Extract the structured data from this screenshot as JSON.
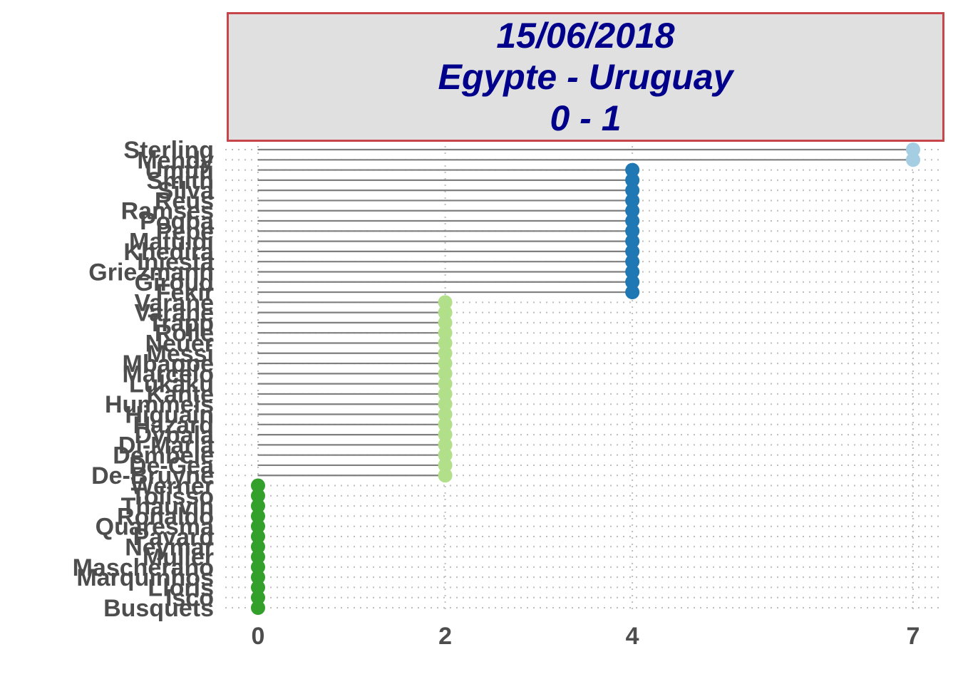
{
  "title": {
    "date": "15/06/2018",
    "match": "Egypte - Uruguay",
    "score": "0 - 1"
  },
  "colors": {
    "title_bg": "#e0e0e0",
    "title_border": "#c8464b",
    "title_text": "#00008b",
    "segment": "#7f7f7f",
    "level_7": "#a6cee3",
    "level_4": "#1f78b4",
    "level_2": "#b2df8a",
    "level_0": "#33a02c"
  },
  "chart_data": {
    "type": "lollipop",
    "orientation": "horizontal",
    "xlim": [
      0,
      7
    ],
    "x_ticks": [
      0,
      2,
      4,
      7
    ],
    "grid": "dotted",
    "categories": [
      "Sterling",
      "Mendy",
      "Umtiti",
      "Smith",
      "Silva",
      "Reus",
      "Ramses",
      "Pogba",
      "Pepe",
      "Matuidi",
      "Khedira",
      "Iniesta",
      "Griezmann",
      "Giroud",
      "Fekir",
      "Varane",
      "Varane",
      "Trapp",
      "Rolle",
      "Neuer",
      "Messi",
      "Mbappe",
      "Marcelo",
      "Lukaku",
      "Kante",
      "Hummels",
      "Higuain",
      "Hazard",
      "Dybala",
      "Di-Maria",
      "Dembele",
      "De-Gea",
      "De-Bruyne",
      "Werner",
      "Tolisso",
      "Thauvin",
      "Ronaldo",
      "Quaresma",
      "Pavard",
      "Neymar",
      "Muller",
      "Mascherano",
      "Marquinhos",
      "Lloris",
      "Isco",
      "Busquets"
    ],
    "values": [
      7,
      7,
      4,
      4,
      4,
      4,
      4,
      4,
      4,
      4,
      4,
      4,
      4,
      4,
      4,
      2,
      2,
      2,
      2,
      2,
      2,
      2,
      2,
      2,
      2,
      2,
      2,
      2,
      2,
      2,
      2,
      2,
      2,
      0,
      0,
      0,
      0,
      0,
      0,
      0,
      0,
      0,
      0,
      0,
      0,
      0
    ]
  }
}
